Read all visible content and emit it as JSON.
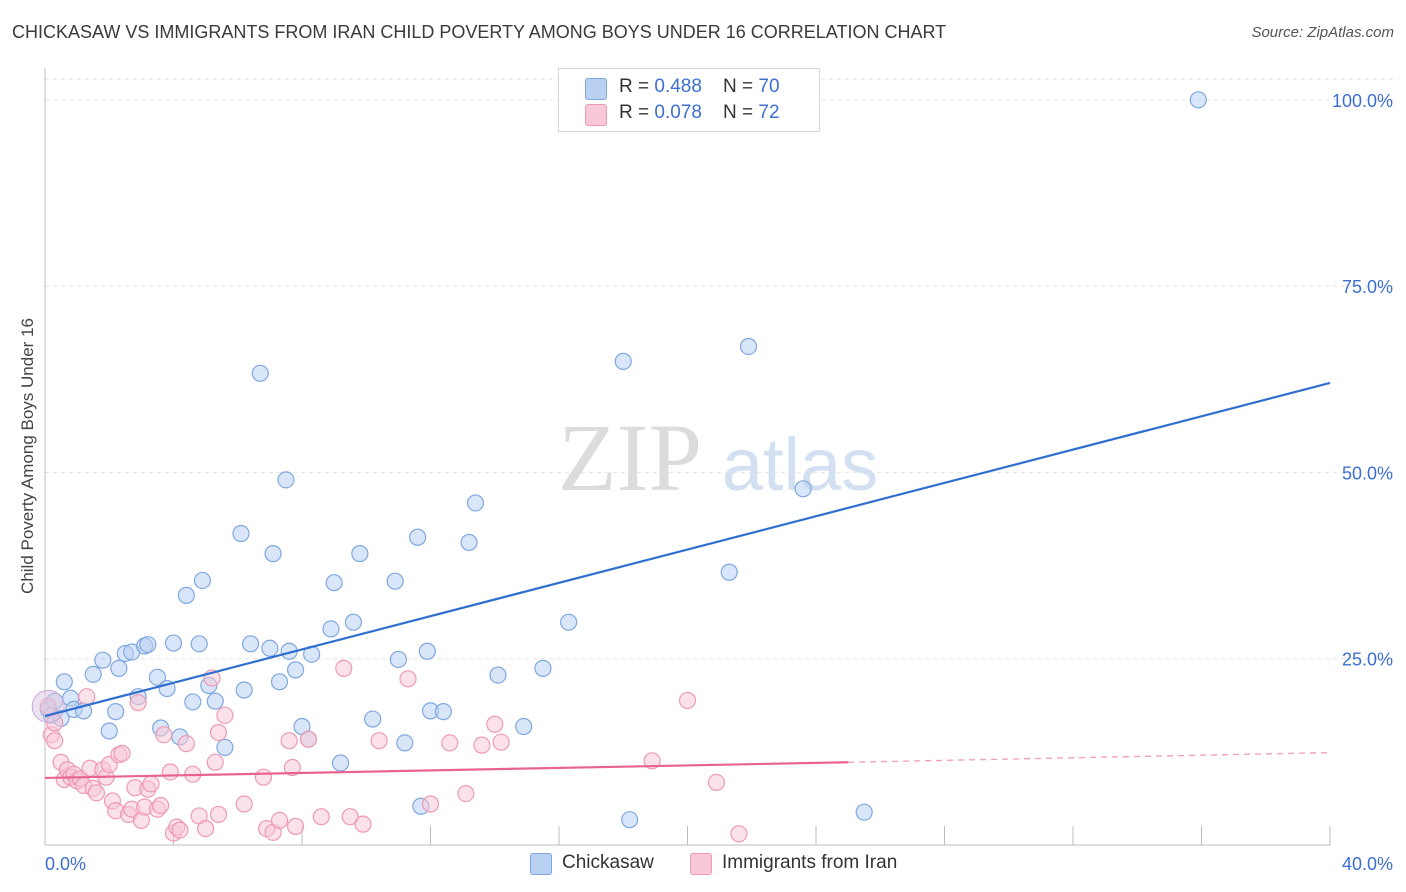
{
  "title": "CHICKASAW VS IMMIGRANTS FROM IRAN CHILD POVERTY AMONG BOYS UNDER 16 CORRELATION CHART",
  "source": "Source: ZipAtlas.com",
  "watermark": {
    "zip": "ZIP",
    "atlas": "atlas"
  },
  "legend_top": [
    {
      "r_label": "R = ",
      "r_value": "0.488",
      "n_label": "N = ",
      "n_value": "70"
    },
    {
      "r_label": "R = ",
      "r_value": "0.078",
      "n_label": "N = ",
      "n_value": "72"
    }
  ],
  "chart_data": {
    "type": "scatter",
    "title": "CHICKASAW VS IMMIGRANTS FROM IRAN CHILD POVERTY AMONG BOYS UNDER 16 CORRELATION CHART",
    "xlabel": "",
    "ylabel": "Child Poverty Among Boys Under 16",
    "xlim": [
      0,
      40
    ],
    "ylim": [
      0,
      104
    ],
    "x_tick_labels": [
      "0.0%",
      "40.0%"
    ],
    "y_ticks": [
      25,
      50,
      75,
      100
    ],
    "y_tick_labels": [
      "25.0%",
      "50.0%",
      "75.0%",
      "100.0%"
    ],
    "grid": true,
    "legend_position": "bottom",
    "series": [
      {
        "name": "Chickasaw",
        "color": "#7fa8e0",
        "fill": "#b9d0f2",
        "trend": {
          "x": [
            0,
            40
          ],
          "y": [
            17.3,
            62.0
          ],
          "color": "#2f6fd0"
        },
        "points": [
          [
            0.1,
            18.2
          ],
          [
            0.2,
            17.4
          ],
          [
            0.3,
            19.3
          ],
          [
            0.5,
            17.0
          ],
          [
            0.6,
            21.9
          ],
          [
            0.8,
            19.7
          ],
          [
            0.9,
            18.2
          ],
          [
            1.2,
            18.0
          ],
          [
            1.5,
            22.9
          ],
          [
            1.8,
            24.8
          ],
          [
            2.0,
            15.3
          ],
          [
            2.2,
            17.9
          ],
          [
            2.3,
            23.7
          ],
          [
            2.5,
            25.7
          ],
          [
            2.7,
            25.9
          ],
          [
            2.9,
            19.9
          ],
          [
            3.1,
            26.7
          ],
          [
            3.2,
            26.9
          ],
          [
            3.5,
            22.5
          ],
          [
            3.6,
            15.7
          ],
          [
            3.8,
            21.0
          ],
          [
            4.0,
            27.1
          ],
          [
            4.2,
            14.5
          ],
          [
            4.4,
            33.5
          ],
          [
            4.6,
            19.2
          ],
          [
            4.8,
            27.0
          ],
          [
            4.9,
            35.5
          ],
          [
            5.1,
            21.4
          ],
          [
            5.3,
            19.3
          ],
          [
            5.6,
            13.1
          ],
          [
            6.1,
            41.8
          ],
          [
            6.2,
            20.8
          ],
          [
            6.4,
            27.0
          ],
          [
            6.7,
            63.3
          ],
          [
            7.0,
            26.4
          ],
          [
            7.1,
            39.1
          ],
          [
            7.3,
            21.9
          ],
          [
            7.5,
            49.0
          ],
          [
            7.6,
            26.0
          ],
          [
            7.8,
            23.5
          ],
          [
            8.0,
            15.9
          ],
          [
            8.2,
            14.2
          ],
          [
            8.3,
            25.6
          ],
          [
            8.9,
            29.0
          ],
          [
            9.0,
            35.2
          ],
          [
            9.2,
            11.0
          ],
          [
            9.6,
            29.9
          ],
          [
            9.8,
            39.1
          ],
          [
            10.2,
            16.9
          ],
          [
            10.9,
            35.4
          ],
          [
            11.0,
            24.9
          ],
          [
            11.2,
            13.7
          ],
          [
            11.6,
            41.3
          ],
          [
            11.7,
            5.2
          ],
          [
            11.9,
            26.0
          ],
          [
            12.0,
            18.0
          ],
          [
            12.4,
            17.9
          ],
          [
            13.2,
            40.6
          ],
          [
            13.4,
            45.9
          ],
          [
            14.1,
            22.8
          ],
          [
            14.9,
            15.9
          ],
          [
            15.5,
            23.7
          ],
          [
            16.3,
            29.9
          ],
          [
            18.0,
            64.9
          ],
          [
            18.2,
            3.4
          ],
          [
            21.3,
            36.6
          ],
          [
            21.9,
            66.9
          ],
          [
            23.6,
            47.8
          ],
          [
            25.5,
            4.4
          ],
          [
            35.9,
            100.0
          ]
        ]
      },
      {
        "name": "Immigrants from Iran",
        "color": "#ee9ab4",
        "fill": "#f8c8d6",
        "trend": {
          "x": [
            0,
            25
          ],
          "y": [
            9.0,
            11.1
          ],
          "dashed_x": [
            25,
            40
          ],
          "dashed_y": [
            11.1,
            12.4
          ],
          "color": "#e8648e"
        },
        "points": [
          [
            0.1,
            18.6
          ],
          [
            0.2,
            14.8
          ],
          [
            0.3,
            16.4
          ],
          [
            0.3,
            14.0
          ],
          [
            0.5,
            11.1
          ],
          [
            0.6,
            8.8
          ],
          [
            0.7,
            10.1
          ],
          [
            0.8,
            9.1
          ],
          [
            0.9,
            9.5
          ],
          [
            1.0,
            8.6
          ],
          [
            1.1,
            8.9
          ],
          [
            1.2,
            8.0
          ],
          [
            1.3,
            19.9
          ],
          [
            1.4,
            10.3
          ],
          [
            1.5,
            7.6
          ],
          [
            1.6,
            7.0
          ],
          [
            1.8,
            10.1
          ],
          [
            1.9,
            9.1
          ],
          [
            2.0,
            10.8
          ],
          [
            2.1,
            5.9
          ],
          [
            2.2,
            4.6
          ],
          [
            2.3,
            12.1
          ],
          [
            2.4,
            12.3
          ],
          [
            2.6,
            4.1
          ],
          [
            2.7,
            4.8
          ],
          [
            2.8,
            7.7
          ],
          [
            2.9,
            19.1
          ],
          [
            3.0,
            3.3
          ],
          [
            3.1,
            5.1
          ],
          [
            3.2,
            7.5
          ],
          [
            3.3,
            8.2
          ],
          [
            3.5,
            4.8
          ],
          [
            3.6,
            5.3
          ],
          [
            3.7,
            14.8
          ],
          [
            3.9,
            9.8
          ],
          [
            4.0,
            1.6
          ],
          [
            4.1,
            2.4
          ],
          [
            4.2,
            2.0
          ],
          [
            4.4,
            13.6
          ],
          [
            4.6,
            9.5
          ],
          [
            4.8,
            3.9
          ],
          [
            5.0,
            2.2
          ],
          [
            5.2,
            22.4
          ],
          [
            5.3,
            11.1
          ],
          [
            5.4,
            15.1
          ],
          [
            5.6,
            17.4
          ],
          [
            5.4,
            4.1
          ],
          [
            6.2,
            5.5
          ],
          [
            6.8,
            9.1
          ],
          [
            6.9,
            2.2
          ],
          [
            7.1,
            1.7
          ],
          [
            7.3,
            3.3
          ],
          [
            7.6,
            14.0
          ],
          [
            7.7,
            10.4
          ],
          [
            7.8,
            2.5
          ],
          [
            8.2,
            14.2
          ],
          [
            8.6,
            3.8
          ],
          [
            9.3,
            23.7
          ],
          [
            9.5,
            3.8
          ],
          [
            9.9,
            2.8
          ],
          [
            10.4,
            14.0
          ],
          [
            11.3,
            22.3
          ],
          [
            12.0,
            5.5
          ],
          [
            12.6,
            13.7
          ],
          [
            13.1,
            6.9
          ],
          [
            13.6,
            13.4
          ],
          [
            14.0,
            16.2
          ],
          [
            14.2,
            13.8
          ],
          [
            18.9,
            11.3
          ],
          [
            20.0,
            19.4
          ],
          [
            20.9,
            8.4
          ],
          [
            21.6,
            1.5
          ]
        ]
      }
    ]
  }
}
